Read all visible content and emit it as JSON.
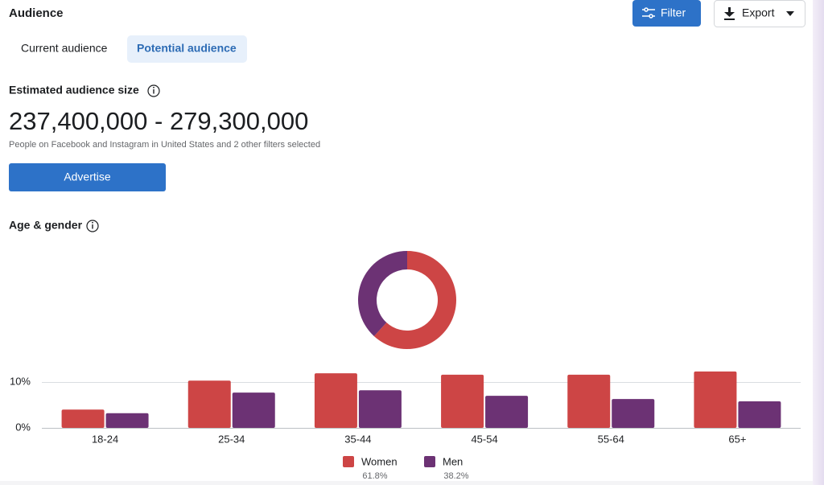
{
  "header": {
    "title": "Audience",
    "filter": "Filter",
    "export": "Export"
  },
  "tabs": [
    "Current audience",
    "Potential audience"
  ],
  "audience_size": {
    "label": "Estimated audience size",
    "value": "237,400,000 - 279,300,000",
    "note": "People on Facebook and Instagram in United States and 2 other filters selected"
  },
  "advertise": "Advertise",
  "chart_data": [
    {
      "type": "donut",
      "title": "Age & gender",
      "values": [
        61.8,
        38.2
      ],
      "value_labels": [
        "61.8%",
        "38.2%"
      ],
      "colors": [
        "#cd4545",
        "#6c3274"
      ]
    },
    {
      "type": "bar",
      "categories": [
        "18-24",
        "25-34",
        "35-44",
        "45-54",
        "55-64",
        "65+"
      ],
      "series": [
        {
          "name": "Women",
          "color": "#cd4545",
          "values": [
            4.0,
            10.3,
            11.9,
            11.6,
            11.6,
            12.3
          ]
        },
        {
          "name": "Men",
          "color": "#6c3274",
          "values": [
            3.2,
            7.7,
            8.2,
            7.0,
            6.3,
            5.8
          ]
        }
      ],
      "ylim": [
        0,
        13
      ],
      "yticks": [
        {
          "value": 0,
          "label": "0%"
        },
        {
          "value": 10,
          "label": "10%"
        }
      ],
      "grid": true,
      "legend": "bottom"
    }
  ]
}
